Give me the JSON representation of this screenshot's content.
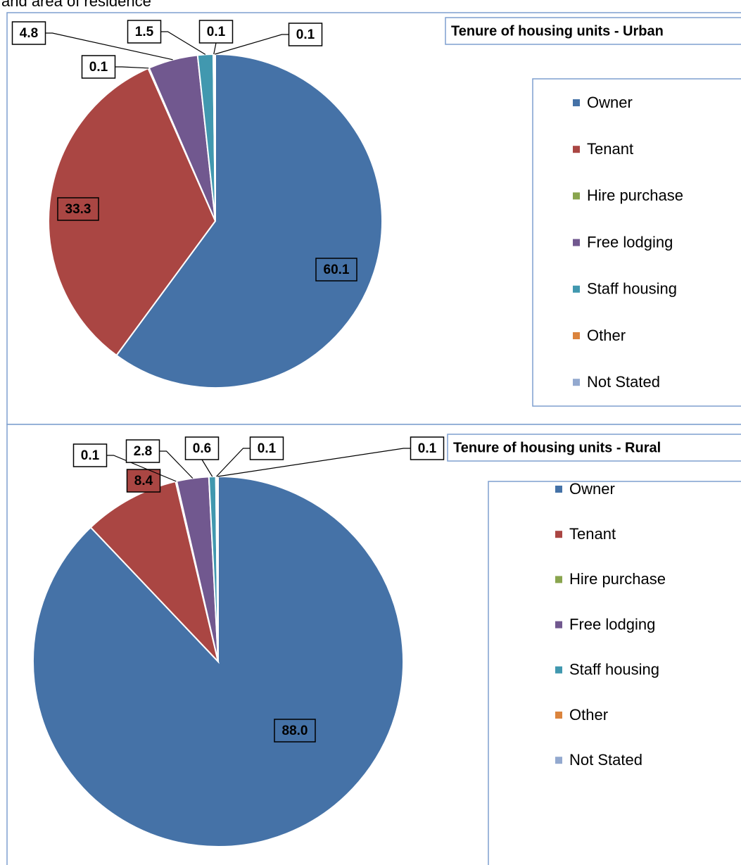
{
  "page_caption": "and area of residence",
  "chart_data": [
    {
      "type": "pie",
      "title": "Tenure of housing units - Urban",
      "categories": [
        "Owner",
        "Tenant",
        "Hire purchase",
        "Free lodging",
        "Staff housing",
        "Other",
        "Not Stated"
      ],
      "values": [
        60.1,
        33.3,
        0.1,
        4.8,
        1.5,
        0.1,
        0.1
      ],
      "value_labels": [
        "60.1",
        "33.3",
        "0.1",
        "4.8",
        "1.5",
        "0.1",
        "0.1"
      ],
      "colors": [
        "#4572a7",
        "#aa4643",
        "#89a54e",
        "#71588f",
        "#4198af",
        "#db843d",
        "#93a9cf"
      ],
      "legend": "right"
    },
    {
      "type": "pie",
      "title": "Tenure of housing units - Rural",
      "categories": [
        "Owner",
        "Tenant",
        "Hire purchase",
        "Free lodging",
        "Staff housing",
        "Other",
        "Not Stated"
      ],
      "values": [
        88.0,
        8.4,
        0.1,
        2.8,
        0.6,
        0.1,
        0.1
      ],
      "value_labels": [
        "88.0",
        "8.4",
        "0.1",
        "2.8",
        "0.6",
        "0.1",
        "0.1"
      ],
      "colors": [
        "#4572a7",
        "#aa4643",
        "#89a54e",
        "#71588f",
        "#4198af",
        "#db843d",
        "#93a9cf"
      ],
      "legend": "right"
    }
  ]
}
